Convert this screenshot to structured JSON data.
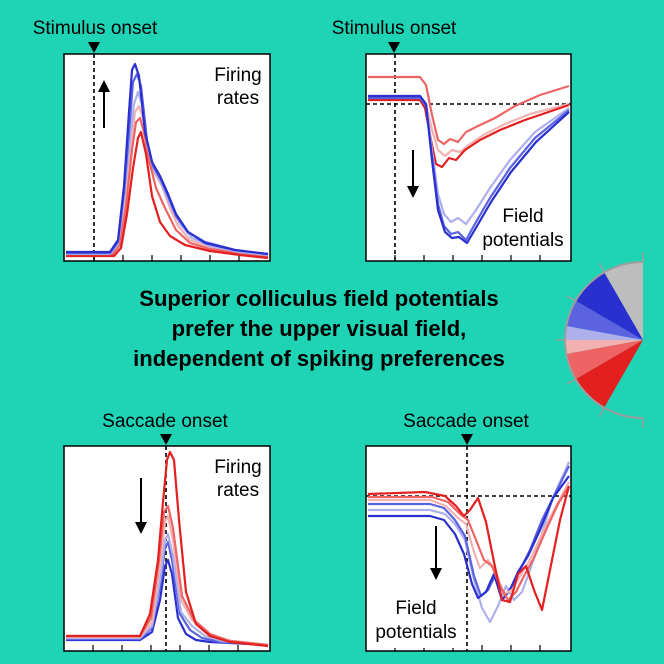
{
  "panels": {
    "top_left": {
      "header": "Stimulus onset",
      "label_line1": "Firing",
      "label_line2": "rates"
    },
    "top_right": {
      "header": "Stimulus onset",
      "label_line1": "Field",
      "label_line2": "potentials"
    },
    "bottom_left": {
      "header": "Saccade onset",
      "label_line1": "Firing",
      "label_line2": "rates"
    },
    "bottom_right": {
      "header": "Saccade onset",
      "label_line1": "Field",
      "label_line2": "potentials"
    }
  },
  "title": {
    "line1": "Superior colliculus field potentials",
    "line2": "prefer the upper visual field,",
    "line3": "independent of spiking preferences"
  },
  "colors": {
    "background": "#1fd3b5",
    "series": [
      "#2a2fcf",
      "#5b63e0",
      "#aeb0ec",
      "#f2b2b2",
      "#ee6363",
      "#e31f1f"
    ]
  }
}
